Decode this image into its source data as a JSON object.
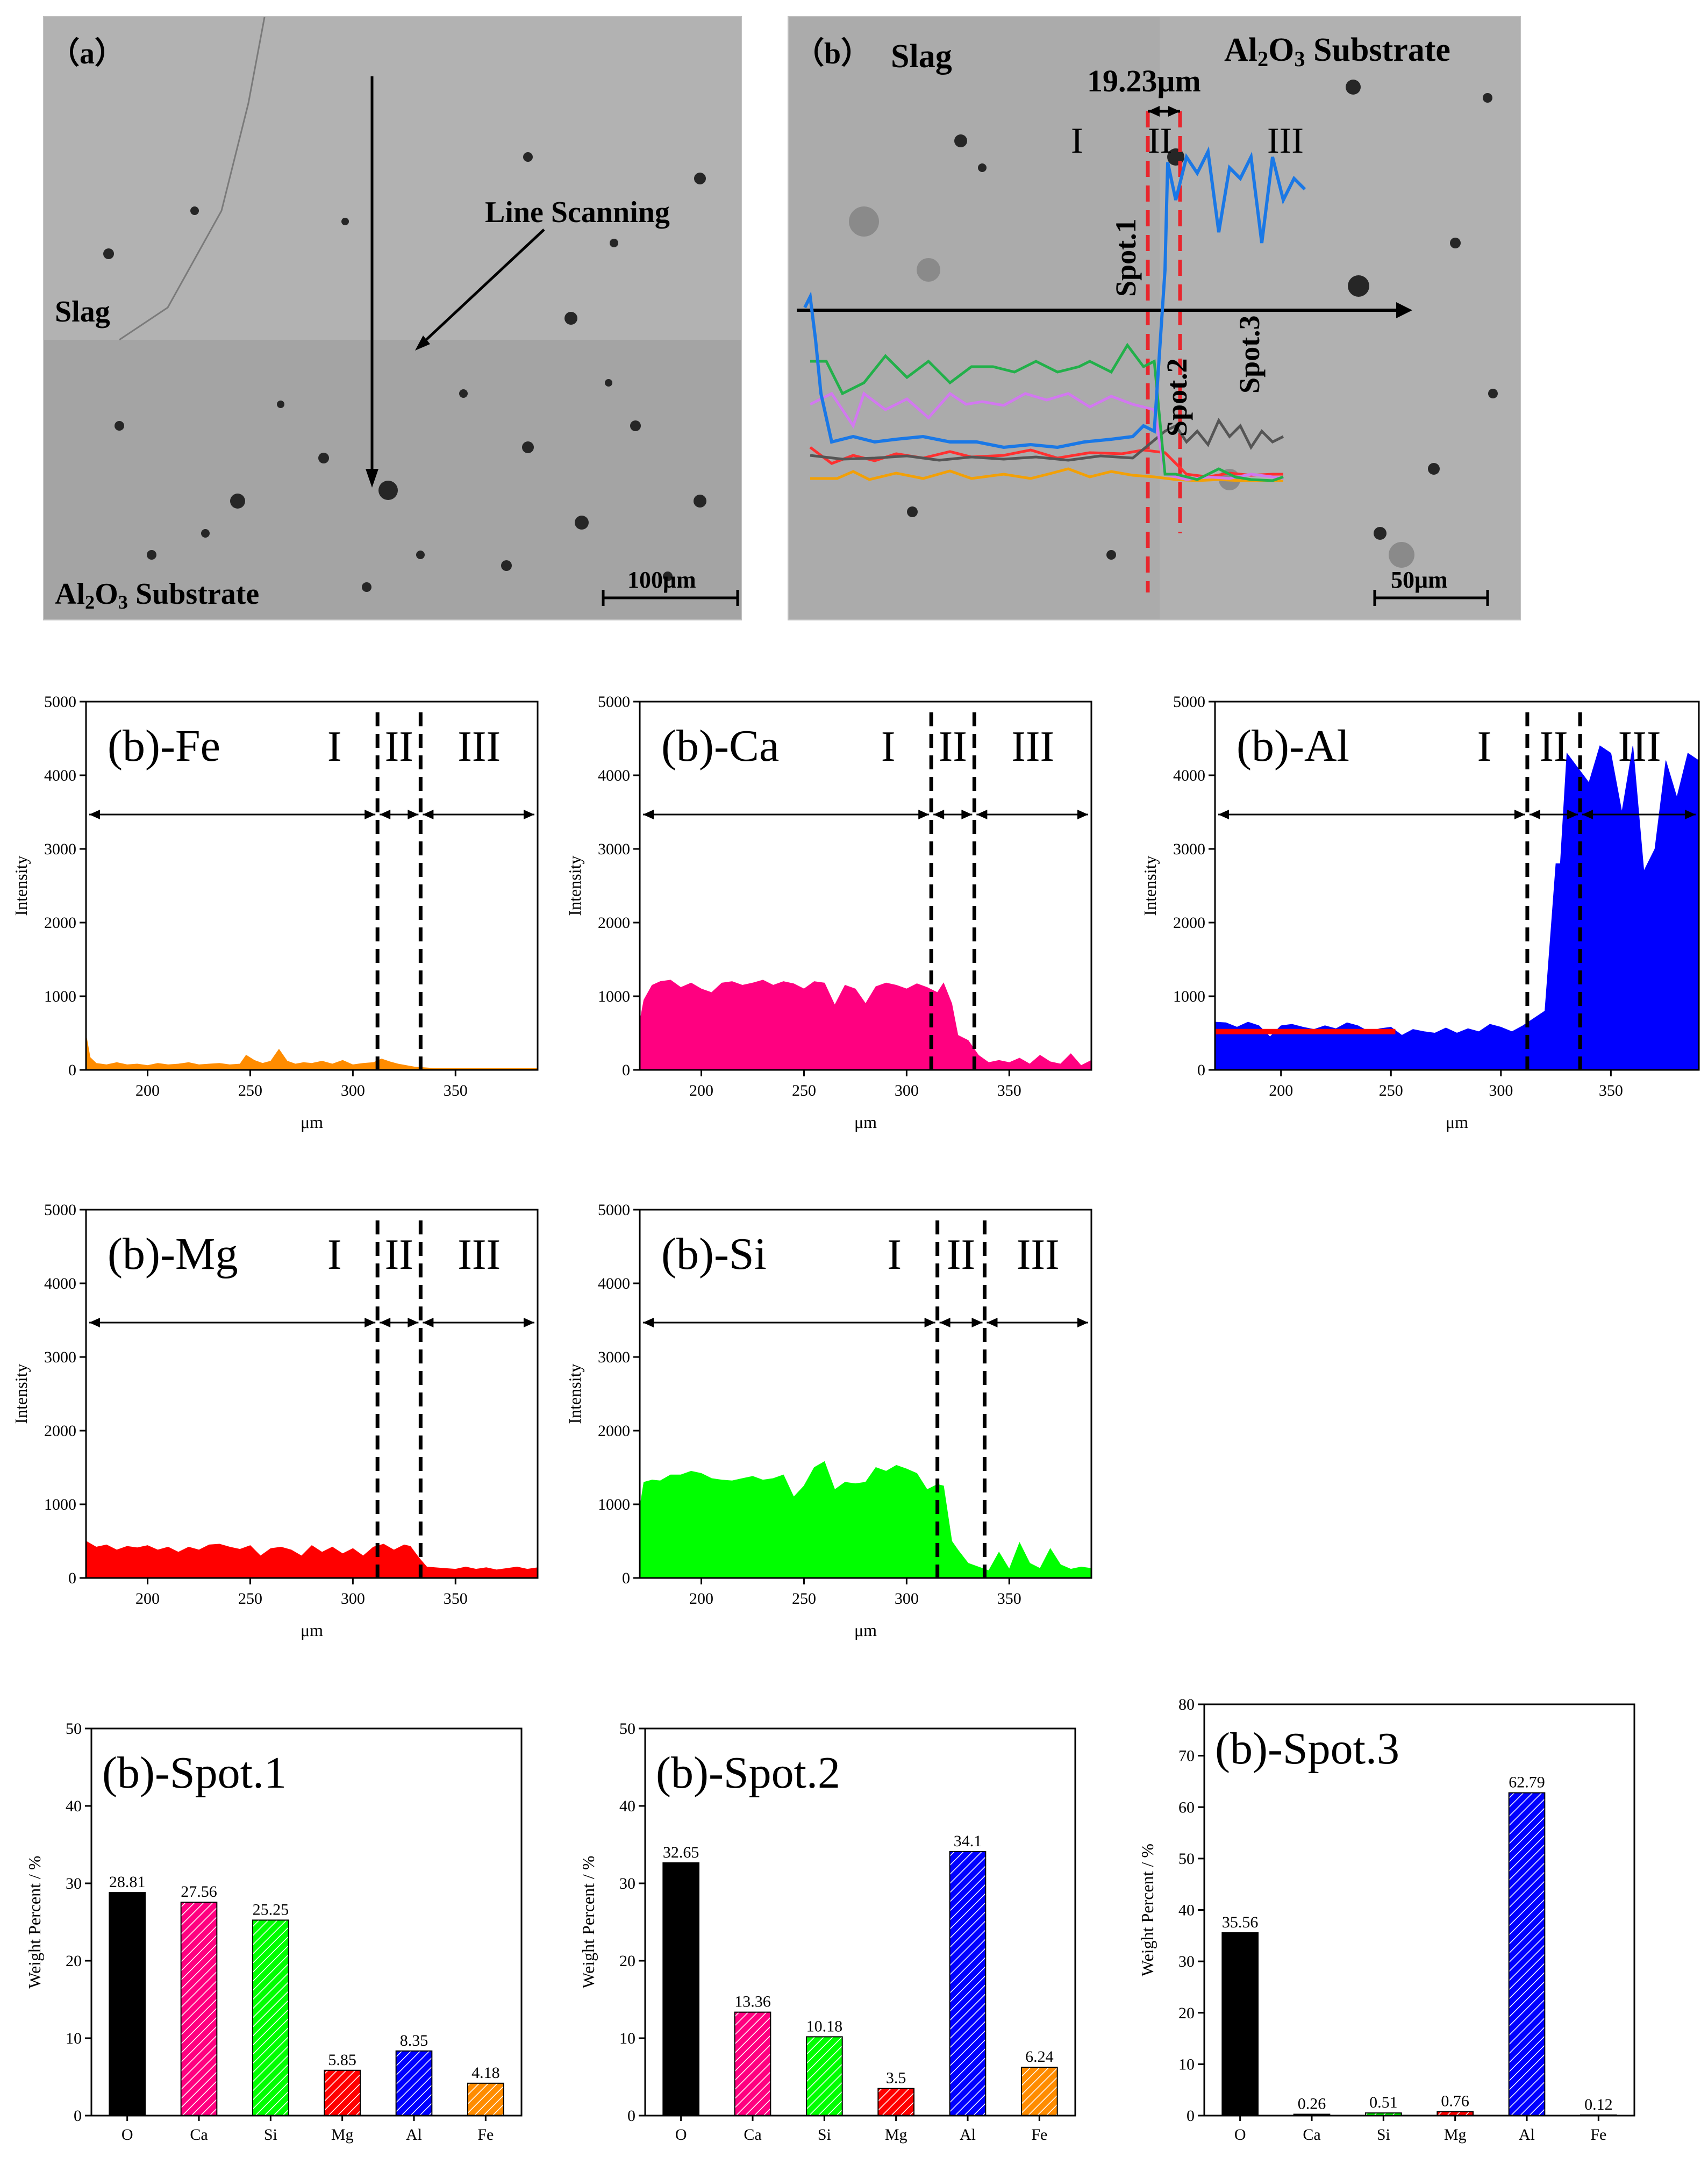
{
  "sem_a": {
    "panel_label": "（a）",
    "slag_label": "Slag",
    "line_scan_label": "Line Scanning",
    "substrate_main": "Al",
    "substrate_sub1": "2",
    "substrate_mid": "O",
    "substrate_sub2": "3",
    "substrate_tail": "Substrate",
    "scale_bar_label": "100μm"
  },
  "sem_b": {
    "panel_label": "（b）",
    "slag_label": "Slag",
    "substrate_main": "Al",
    "substrate_sub1": "2",
    "substrate_mid": "O",
    "substrate_sub2": "3",
    "substrate_tail": "Substrate",
    "width_label": "19.23μm",
    "region_1": "I",
    "region_2": "II",
    "region_3": "III",
    "spot_1": "Spot.1",
    "spot_2": "Spot.2",
    "spot_3": "Spot.3",
    "scale_bar_label": "50μm",
    "colors": {
      "red_dash": "#e8262d",
      "arrow": "#000000"
    }
  },
  "chart_data": [
    {
      "id": "fe",
      "type": "area",
      "title": "(b)-Fe",
      "color": "#ff8c00",
      "xlabel": "μm",
      "ylabel": "Intensity",
      "xlim": [
        170,
        390
      ],
      "ylim": [
        0,
        5000
      ],
      "xticks": [
        200,
        250,
        300,
        350
      ],
      "yticks": [
        0,
        1000,
        2000,
        3000,
        4000,
        5000
      ],
      "boundaries": [
        312,
        333
      ],
      "regions": [
        "I",
        "II",
        "III"
      ],
      "x": [
        170,
        172,
        175,
        180,
        185,
        190,
        195,
        200,
        205,
        210,
        215,
        220,
        225,
        230,
        235,
        240,
        245,
        248,
        252,
        256,
        260,
        264,
        268,
        272,
        276,
        280,
        285,
        290,
        295,
        300,
        305,
        310,
        314,
        318,
        322,
        326,
        330,
        335,
        340,
        350,
        360,
        370,
        380,
        390
      ],
      "values": [
        480,
        170,
        90,
        70,
        100,
        70,
        80,
        60,
        90,
        70,
        80,
        100,
        70,
        80,
        90,
        70,
        80,
        200,
        130,
        90,
        120,
        280,
        120,
        80,
        100,
        90,
        120,
        80,
        130,
        70,
        90,
        100,
        150,
        110,
        80,
        60,
        40,
        30,
        20,
        20,
        20,
        20,
        20,
        20
      ]
    },
    {
      "id": "ca",
      "type": "area",
      "title": "(b)-Ca",
      "color": "#ff0080",
      "xlabel": "μm",
      "ylabel": "Intensity",
      "xlim": [
        170,
        390
      ],
      "ylim": [
        0,
        5000
      ],
      "xticks": [
        200,
        250,
        300,
        350
      ],
      "yticks": [
        0,
        1000,
        2000,
        3000,
        4000,
        5000
      ],
      "boundaries": [
        312,
        333
      ],
      "regions": [
        "I",
        "II",
        "III"
      ],
      "x": [
        170,
        172,
        176,
        180,
        185,
        190,
        195,
        200,
        205,
        210,
        215,
        220,
        225,
        230,
        235,
        240,
        245,
        250,
        255,
        260,
        265,
        270,
        275,
        280,
        285,
        290,
        295,
        300,
        305,
        310,
        315,
        318,
        322,
        325,
        330,
        335,
        340,
        345,
        350,
        355,
        360,
        365,
        370,
        375,
        380,
        385,
        390
      ],
      "values": [
        650,
        950,
        1150,
        1200,
        1220,
        1120,
        1180,
        1100,
        1050,
        1180,
        1200,
        1150,
        1180,
        1220,
        1150,
        1200,
        1170,
        1100,
        1200,
        1180,
        880,
        1150,
        1100,
        900,
        1130,
        1180,
        1150,
        1100,
        1170,
        1120,
        1050,
        1180,
        900,
        470,
        400,
        200,
        100,
        130,
        100,
        160,
        80,
        200,
        110,
        80,
        220,
        60,
        130
      ]
    },
    {
      "id": "al",
      "type": "area",
      "title": "(b)-Al",
      "color": "#0000ff",
      "overlay_color": "#ff0000",
      "xlabel": "μm",
      "ylabel": "Intensity",
      "xlim": [
        170,
        390
      ],
      "ylim": [
        0,
        5000
      ],
      "xticks": [
        200,
        250,
        300,
        350
      ],
      "yticks": [
        0,
        1000,
        2000,
        3000,
        4000,
        5000
      ],
      "boundaries": [
        312,
        336
      ],
      "regions": [
        "I",
        "II",
        "III"
      ],
      "x": [
        170,
        175,
        180,
        185,
        190,
        195,
        200,
        205,
        210,
        215,
        220,
        225,
        230,
        235,
        240,
        245,
        250,
        255,
        260,
        265,
        270,
        275,
        280,
        285,
        290,
        295,
        300,
        305,
        310,
        315,
        320,
        325,
        327,
        330,
        335,
        340,
        345,
        350,
        355,
        360,
        365,
        370,
        375,
        380,
        385,
        390
      ],
      "values": [
        650,
        640,
        580,
        650,
        600,
        450,
        600,
        620,
        580,
        550,
        600,
        560,
        640,
        600,
        520,
        560,
        580,
        470,
        550,
        520,
        500,
        570,
        500,
        560,
        520,
        620,
        580,
        520,
        600,
        700,
        800,
        2800,
        2800,
        4300,
        4100,
        3900,
        4400,
        4300,
        3500,
        4400,
        2700,
        3000,
        4200,
        3700,
        4300,
        4200
      ],
      "overlay_x": [
        170,
        252
      ],
      "overlay_value": 520
    },
    {
      "id": "mg",
      "type": "area",
      "title": "(b)-Mg",
      "color": "#ff0000",
      "xlabel": "μm",
      "ylabel": "Intensity",
      "xlim": [
        170,
        390
      ],
      "ylim": [
        0,
        5000
      ],
      "xticks": [
        200,
        250,
        300,
        350
      ],
      "yticks": [
        0,
        1000,
        2000,
        3000,
        4000,
        5000
      ],
      "boundaries": [
        312,
        333
      ],
      "regions": [
        "I",
        "II",
        "III"
      ],
      "x": [
        170,
        175,
        180,
        185,
        190,
        195,
        200,
        205,
        210,
        215,
        220,
        225,
        230,
        235,
        240,
        245,
        250,
        255,
        260,
        265,
        270,
        275,
        280,
        285,
        290,
        295,
        300,
        305,
        310,
        315,
        320,
        325,
        328,
        332,
        336,
        340,
        345,
        350,
        355,
        360,
        365,
        370,
        375,
        380,
        385,
        390
      ],
      "values": [
        500,
        420,
        450,
        380,
        430,
        410,
        440,
        380,
        420,
        350,
        420,
        380,
        450,
        460,
        420,
        390,
        440,
        300,
        400,
        420,
        380,
        300,
        440,
        350,
        420,
        330,
        400,
        300,
        420,
        460,
        380,
        450,
        430,
        280,
        150,
        140,
        130,
        120,
        150,
        120,
        140,
        110,
        130,
        150,
        120,
        140
      ]
    },
    {
      "id": "si",
      "type": "area",
      "title": "(b)-Si",
      "color": "#00ff00",
      "xlabel": "μm",
      "ylabel": "Intensity",
      "xlim": [
        170,
        390
      ],
      "ylim": [
        0,
        5000
      ],
      "xticks": [
        200,
        250,
        300,
        350
      ],
      "yticks": [
        0,
        1000,
        2000,
        3000,
        4000,
        5000
      ],
      "boundaries": [
        315,
        338
      ],
      "regions": [
        "I",
        "II",
        "III"
      ],
      "x": [
        170,
        172,
        176,
        180,
        185,
        190,
        195,
        200,
        205,
        210,
        215,
        220,
        225,
        230,
        235,
        240,
        245,
        250,
        255,
        260,
        265,
        270,
        275,
        280,
        285,
        290,
        295,
        300,
        305,
        310,
        315,
        318,
        322,
        325,
        330,
        335,
        340,
        345,
        350,
        355,
        360,
        365,
        370,
        375,
        380,
        385,
        390
      ],
      "values": [
        950,
        1300,
        1330,
        1320,
        1400,
        1400,
        1450,
        1420,
        1350,
        1330,
        1320,
        1350,
        1380,
        1330,
        1350,
        1400,
        1100,
        1250,
        1500,
        1580,
        1200,
        1300,
        1280,
        1300,
        1500,
        1450,
        1530,
        1480,
        1420,
        1200,
        1270,
        1250,
        500,
        380,
        200,
        150,
        100,
        350,
        120,
        480,
        200,
        130,
        400,
        180,
        120,
        150,
        130
      ]
    },
    {
      "id": "spot1",
      "type": "bar",
      "title": "(b)-Spot.1",
      "ylabel": "Weight Percent / %",
      "ylim": [
        0,
        50
      ],
      "yticks": [
        0,
        10,
        20,
        30,
        40,
        50
      ],
      "categories": [
        "O",
        "Ca",
        "Si",
        "Mg",
        "Al",
        "Fe"
      ],
      "values": [
        28.81,
        27.56,
        25.25,
        5.85,
        8.35,
        4.18
      ],
      "labels": [
        "28.81",
        "27.56",
        "25.25",
        "5.85",
        "8.35",
        "4.18"
      ],
      "colors": [
        "#000000",
        "#ff0080",
        "#00ff00",
        "#ff0000",
        "#0000ff",
        "#ff8c00"
      ]
    },
    {
      "id": "spot2",
      "type": "bar",
      "title": "(b)-Spot.2",
      "ylabel": "Weight Percent / %",
      "ylim": [
        0,
        50
      ],
      "yticks": [
        0,
        10,
        20,
        30,
        40,
        50
      ],
      "categories": [
        "O",
        "Ca",
        "Si",
        "Mg",
        "Al",
        "Fe"
      ],
      "values": [
        32.65,
        13.36,
        10.18,
        3.5,
        34.1,
        6.24
      ],
      "labels": [
        "32.65",
        "13.36",
        "10.18",
        "3.5",
        "34.1",
        "6.24"
      ],
      "colors": [
        "#000000",
        "#ff0080",
        "#00ff00",
        "#ff0000",
        "#0000ff",
        "#ff8c00"
      ]
    },
    {
      "id": "spot3",
      "type": "bar",
      "title": "(b)-Spot.3",
      "ylabel": "Weight Percent / %",
      "ylim": [
        0,
        80
      ],
      "yticks": [
        0,
        10,
        20,
        30,
        40,
        50,
        60,
        70,
        80
      ],
      "categories": [
        "O",
        "Ca",
        "Si",
        "Mg",
        "Al",
        "Fe"
      ],
      "values": [
        35.56,
        0.26,
        0.51,
        0.76,
        62.79,
        0.12
      ],
      "labels": [
        "35.56",
        "0.26",
        "0.51",
        "0.76",
        "62.79",
        "0.12"
      ],
      "colors": [
        "#000000",
        "#ff0080",
        "#00ff00",
        "#ff0000",
        "#0000ff",
        "#ff8c00"
      ]
    }
  ]
}
